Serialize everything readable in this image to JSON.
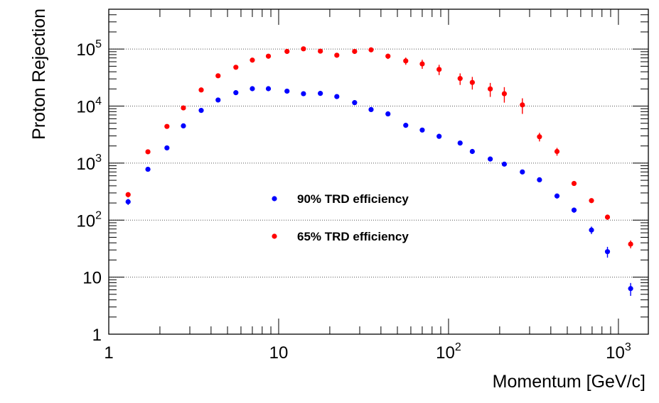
{
  "chart_data": {
    "type": "scatter",
    "xlabel": "Momentum [GeV/c]",
    "ylabel": "Proton Rejection",
    "xscale": "log",
    "yscale": "log",
    "xlim": [
      1,
      1500
    ],
    "ylim": [
      1,
      500000
    ],
    "grid": "horizontal dotted at major y ticks",
    "legend_placement": "center",
    "x_ticks": [
      {
        "value": 1,
        "base": "1",
        "exp": ""
      },
      {
        "value": 10,
        "base": "10",
        "exp": ""
      },
      {
        "value": 100,
        "base": "10",
        "exp": "2"
      },
      {
        "value": 1000,
        "base": "10",
        "exp": "3"
      }
    ],
    "y_ticks": [
      {
        "value": 1,
        "base": "1",
        "exp": ""
      },
      {
        "value": 10,
        "base": "10",
        "exp": ""
      },
      {
        "value": 100,
        "base": "10",
        "exp": "2"
      },
      {
        "value": 1000,
        "base": "10",
        "exp": "3"
      },
      {
        "value": 10000,
        "base": "10",
        "exp": "4"
      },
      {
        "value": 100000,
        "base": "10",
        "exp": "5"
      }
    ],
    "series": [
      {
        "name": "90% TRD efficiency",
        "color": "#0000ff",
        "points": [
          {
            "x": 1.3,
            "y": 210,
            "err": 25
          },
          {
            "x": 1.7,
            "y": 780,
            "err": 60
          },
          {
            "x": 2.2,
            "y": 1850,
            "err": 120
          },
          {
            "x": 2.75,
            "y": 4500,
            "err": 300
          },
          {
            "x": 3.5,
            "y": 8400,
            "err": 500
          },
          {
            "x": 4.4,
            "y": 12800,
            "err": 700
          },
          {
            "x": 5.6,
            "y": 17200,
            "err": 900
          },
          {
            "x": 7.0,
            "y": 20200,
            "err": 1000
          },
          {
            "x": 8.7,
            "y": 20200,
            "err": 1000
          },
          {
            "x": 11.2,
            "y": 18300,
            "err": 900
          },
          {
            "x": 14.0,
            "y": 16500,
            "err": 800
          },
          {
            "x": 17.6,
            "y": 16700,
            "err": 800
          },
          {
            "x": 22.0,
            "y": 14700,
            "err": 700
          },
          {
            "x": 28.0,
            "y": 11500,
            "err": 600
          },
          {
            "x": 35.0,
            "y": 8700,
            "err": 450
          },
          {
            "x": 44.0,
            "y": 7300,
            "err": 400
          },
          {
            "x": 56.0,
            "y": 4600,
            "err": 250
          },
          {
            "x": 70.0,
            "y": 3800,
            "err": 200
          },
          {
            "x": 88.0,
            "y": 2950,
            "err": 160
          },
          {
            "x": 117.0,
            "y": 2250,
            "err": 130
          },
          {
            "x": 138.0,
            "y": 1600,
            "err": 100
          },
          {
            "x": 176.0,
            "y": 1180,
            "err": 80
          },
          {
            "x": 213.0,
            "y": 960,
            "err": 60
          },
          {
            "x": 272.0,
            "y": 700,
            "err": 50
          },
          {
            "x": 343.0,
            "y": 510,
            "err": 40
          },
          {
            "x": 435.0,
            "y": 265,
            "err": 25
          },
          {
            "x": 548.0,
            "y": 150,
            "err": 15
          },
          {
            "x": 694.0,
            "y": 67,
            "err": 10
          },
          {
            "x": 862.0,
            "y": 28,
            "err": 6
          },
          {
            "x": 1180.0,
            "y": 6.3,
            "err": 1.6
          }
        ]
      },
      {
        "name": "65% TRD efficiency",
        "color": "#ff0000",
        "points": [
          {
            "x": 1.3,
            "y": 280,
            "err": 30
          },
          {
            "x": 1.7,
            "y": 1580,
            "err": 120
          },
          {
            "x": 2.2,
            "y": 4400,
            "err": 300
          },
          {
            "x": 2.75,
            "y": 9300,
            "err": 600
          },
          {
            "x": 3.5,
            "y": 19200,
            "err": 1200
          },
          {
            "x": 4.4,
            "y": 34000,
            "err": 2000
          },
          {
            "x": 5.6,
            "y": 48000,
            "err": 3000
          },
          {
            "x": 7.0,
            "y": 64000,
            "err": 4000
          },
          {
            "x": 8.7,
            "y": 75000,
            "err": 4500
          },
          {
            "x": 11.2,
            "y": 91000,
            "err": 5500
          },
          {
            "x": 14.0,
            "y": 101000,
            "err": 6000
          },
          {
            "x": 17.6,
            "y": 92000,
            "err": 5500
          },
          {
            "x": 22.0,
            "y": 78000,
            "err": 5000
          },
          {
            "x": 28.0,
            "y": 91000,
            "err": 6000
          },
          {
            "x": 35.0,
            "y": 97000,
            "err": 8000
          },
          {
            "x": 44.0,
            "y": 75000,
            "err": 8000
          },
          {
            "x": 56.0,
            "y": 62000,
            "err": 9000
          },
          {
            "x": 70.0,
            "y": 55000,
            "err": 10000
          },
          {
            "x": 88.0,
            "y": 44000,
            "err": 9000
          },
          {
            "x": 117.0,
            "y": 30500,
            "err": 7000
          },
          {
            "x": 138.0,
            "y": 26000,
            "err": 6500
          },
          {
            "x": 176.0,
            "y": 20000,
            "err": 5500
          },
          {
            "x": 213.0,
            "y": 16500,
            "err": 5000
          },
          {
            "x": 272.0,
            "y": 10500,
            "err": 3200
          },
          {
            "x": 343.0,
            "y": 2900,
            "err": 500
          },
          {
            "x": 435.0,
            "y": 1600,
            "err": 250
          },
          {
            "x": 548.0,
            "y": 440,
            "err": 40
          },
          {
            "x": 694.0,
            "y": 220,
            "err": 20
          },
          {
            "x": 862.0,
            "y": 113,
            "err": 12
          },
          {
            "x": 1180.0,
            "y": 38,
            "err": 6
          }
        ]
      }
    ]
  }
}
